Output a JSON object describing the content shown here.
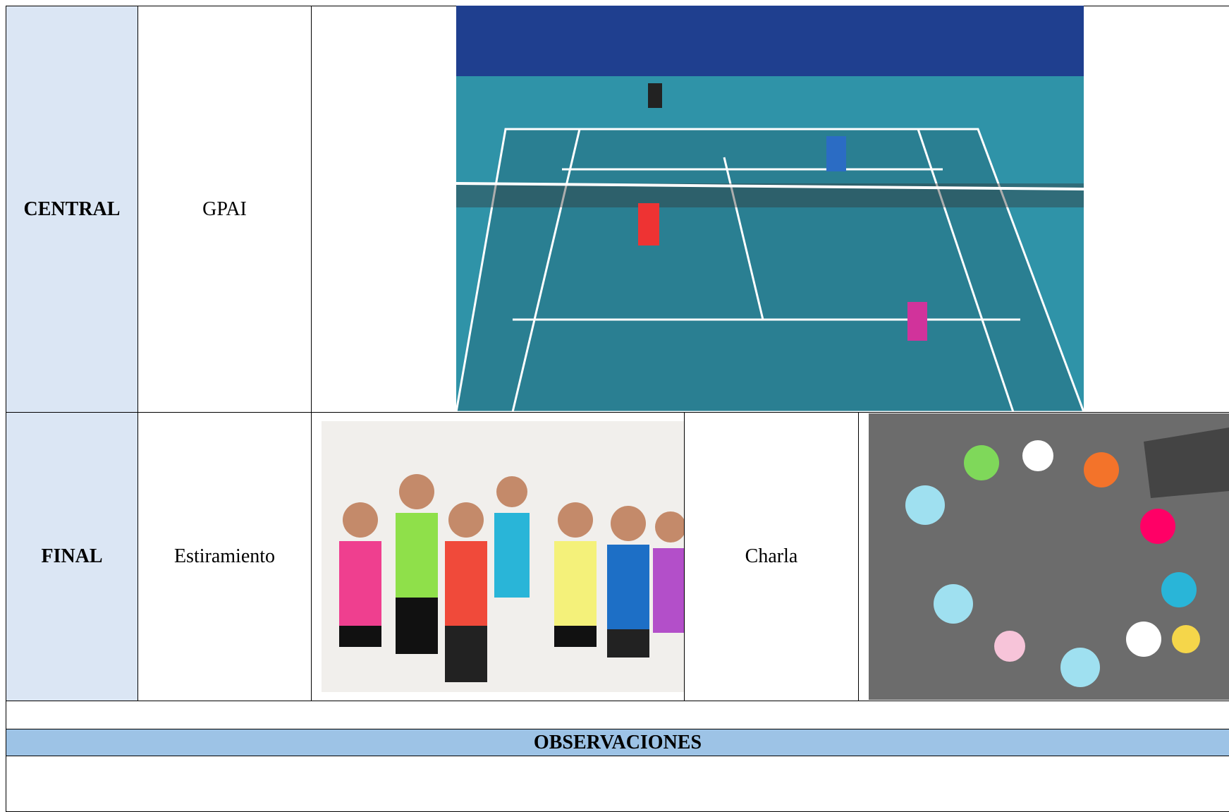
{
  "table": {
    "rows": [
      [
        "CENTRAL",
        "GPAI"
      ],
      [
        "FINAL",
        "Estiramiento",
        "Charla"
      ]
    ]
  },
  "observations": {
    "title": "OBSERVACIONES"
  }
}
